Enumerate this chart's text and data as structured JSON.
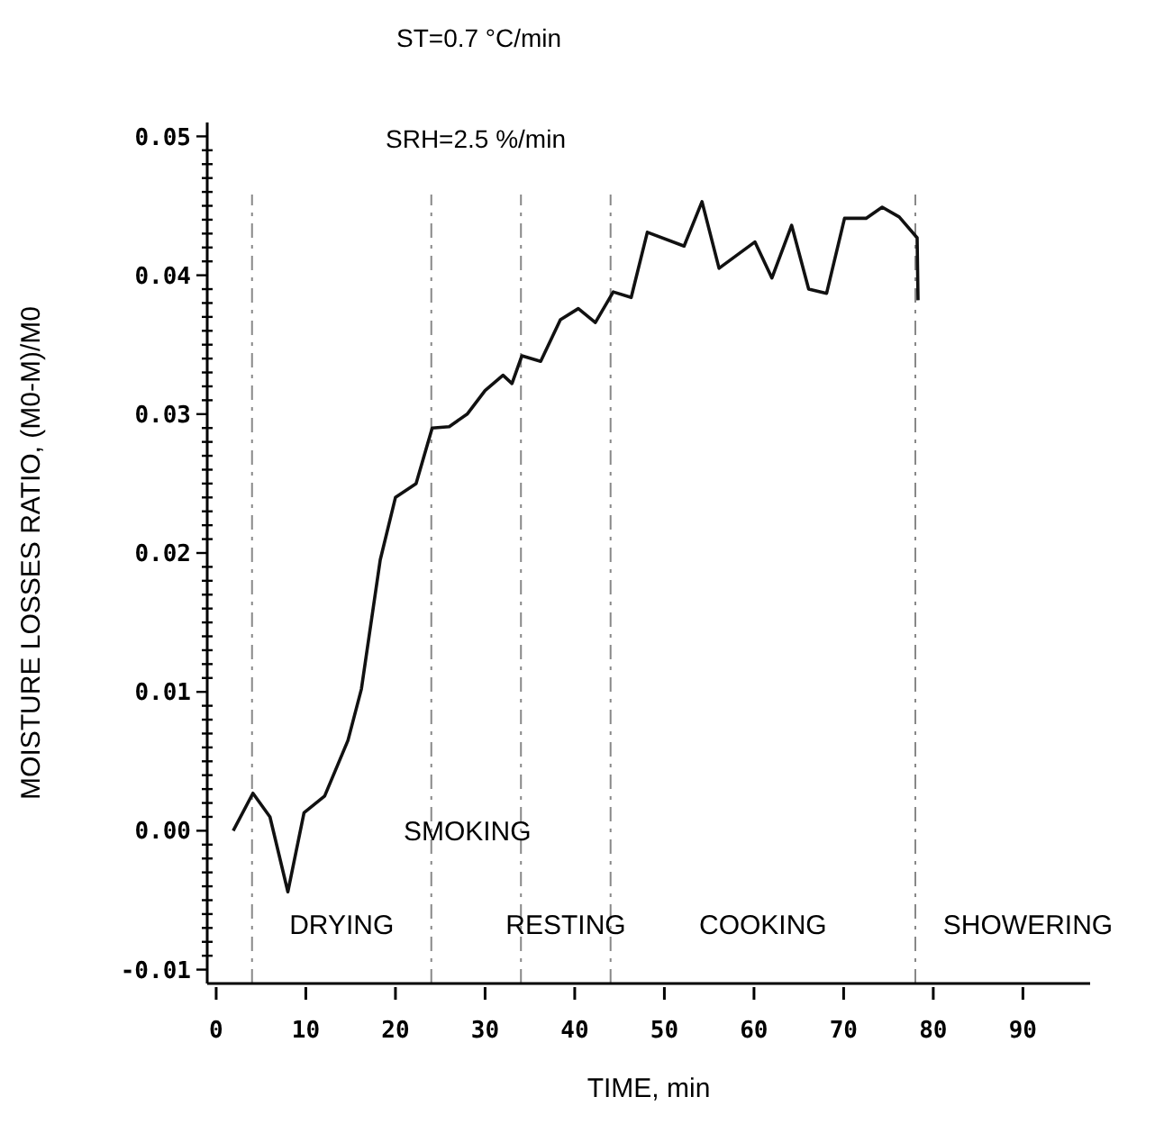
{
  "chart_data": {
    "type": "line",
    "xlabel": "TIME, min",
    "ylabel": "MOISTURE LOSSES RATIO, (M0-M)/M0",
    "annotations": [
      "ST=0.7 °C/min",
      "SRH=2.5 %/min",
      "DRYING",
      "SMOKING",
      "RESTING",
      "COOKING",
      "SHOWERING"
    ],
    "xlim": [
      -1,
      97.5
    ],
    "ylim": [
      -0.011,
      0.051
    ],
    "xticks": [
      {
        "value": 0,
        "label": "0"
      },
      10,
      20,
      30,
      40,
      50,
      60,
      70,
      80,
      90
    ],
    "yticks": [
      {
        "value": -0.01,
        "label": "-0.01"
      },
      {
        "value": -0.009,
        "label": null
      },
      {
        "value": -0.008,
        "label": null
      },
      {
        "value": -0.007,
        "label": null
      },
      {
        "value": -0.006,
        "label": null
      },
      {
        "value": -0.005,
        "label": null
      },
      {
        "value": -0.004,
        "label": null
      },
      {
        "value": -0.003,
        "label": null
      },
      {
        "value": -0.002,
        "label": null
      },
      {
        "value": -0.001,
        "label": null
      },
      {
        "value": 0,
        "label": "0.00"
      },
      {
        "value": 0.001,
        "label": null
      },
      {
        "value": 0.002,
        "label": null
      },
      {
        "value": 0.003,
        "label": null
      },
      {
        "value": 0.004,
        "label": null
      },
      {
        "value": 0.005,
        "label": null
      },
      {
        "value": 0.006,
        "label": null
      },
      {
        "value": 0.007,
        "label": null
      },
      {
        "value": 0.008,
        "label": null
      },
      {
        "value": 0.009,
        "label": null
      },
      {
        "value": 0.01,
        "label": "0.01"
      },
      {
        "value": 0.011,
        "label": null
      },
      {
        "value": 0.012,
        "label": null
      },
      {
        "value": 0.013,
        "label": null
      },
      {
        "value": 0.014,
        "label": null
      },
      {
        "value": 0.015,
        "label": null
      },
      {
        "value": 0.016,
        "label": null
      },
      {
        "value": 0.017,
        "label": null
      },
      {
        "value": 0.018,
        "label": null
      },
      {
        "value": 0.019,
        "label": null
      },
      {
        "value": 0.02,
        "label": "0.02"
      },
      {
        "value": 0.021,
        "label": null
      },
      {
        "value": 0.022,
        "label": null
      },
      {
        "value": 0.023,
        "label": null
      },
      {
        "value": 0.024,
        "label": null
      },
      {
        "value": 0.025,
        "label": null
      },
      {
        "value": 0.026,
        "label": null
      },
      {
        "value": 0.027,
        "label": null
      },
      {
        "value": 0.028,
        "label": null
      },
      {
        "value": 0.029,
        "label": null
      },
      {
        "value": 0.03,
        "label": "0.03"
      },
      {
        "value": 0.031,
        "label": null
      },
      {
        "value": 0.032,
        "label": null
      },
      {
        "value": 0.033,
        "label": null
      },
      {
        "value": 0.034,
        "label": null
      },
      {
        "value": 0.035,
        "label": null
      },
      {
        "value": 0.036,
        "label": null
      },
      {
        "value": 0.037,
        "label": null
      },
      {
        "value": 0.038,
        "label": null
      },
      {
        "value": 0.039,
        "label": null
      },
      {
        "value": 0.04,
        "label": "0.04"
      },
      {
        "value": 0.041,
        "label": null
      },
      {
        "value": 0.042,
        "label": null
      },
      {
        "value": 0.043,
        "label": null
      },
      {
        "value": 0.044,
        "label": null
      },
      {
        "value": 0.045,
        "label": null
      },
      {
        "value": 0.046,
        "label": null
      },
      {
        "value": 0.047,
        "label": null
      },
      {
        "value": 0.048,
        "label": null
      },
      {
        "value": 0.049,
        "label": null
      },
      {
        "value": 0.05,
        "label": "0.05"
      }
    ],
    "ref_lines": [
      {
        "axis": "x",
        "value": 4,
        "color": "#888888",
        "line_style": "dashed"
      },
      {
        "axis": "x",
        "value": 24,
        "color": "#888888",
        "line_style": "dashed"
      },
      {
        "axis": "x",
        "value": 34,
        "color": "#888888",
        "line_style": "dashed"
      },
      {
        "axis": "x",
        "value": 44,
        "color": "#888888",
        "line_style": "dashed"
      },
      {
        "axis": "x",
        "value": 78,
        "color": "#888888",
        "line_style": "dashed"
      }
    ],
    "series": [
      {
        "color": "#111111",
        "x": [
          1.9,
          4.1,
          6.0,
          8.0,
          9.8,
          12.1,
          14.7,
          16.2,
          18.3,
          20.0,
          22.3,
          24.1,
          26,
          28,
          30,
          32,
          33,
          34.1,
          36.2,
          38.4,
          40.4,
          42.3,
          44.3,
          46.3,
          48.1,
          52.2,
          54.2,
          56.1,
          60.1,
          62.0,
          64.2,
          66.1,
          68.1,
          70.1,
          72.5,
          74.3,
          76.2,
          78.2,
          78.3
        ],
        "values": [
          0.0,
          0.0027,
          0.001,
          -0.0044,
          0.0013,
          0.0025,
          0.0065,
          0.0102,
          0.0195,
          0.024,
          0.025,
          0.029,
          0.0291,
          0.03,
          0.0317,
          0.0328,
          0.0322,
          0.0342,
          0.0338,
          0.0368,
          0.0376,
          0.0366,
          0.0388,
          0.0384,
          0.0431,
          0.0421,
          0.0453,
          0.0405,
          0.0424,
          0.0398,
          0.0436,
          0.039,
          0.0387,
          0.0441,
          0.0441,
          0.0449,
          0.0442,
          0.0427,
          0.0382
        ]
      }
    ]
  }
}
